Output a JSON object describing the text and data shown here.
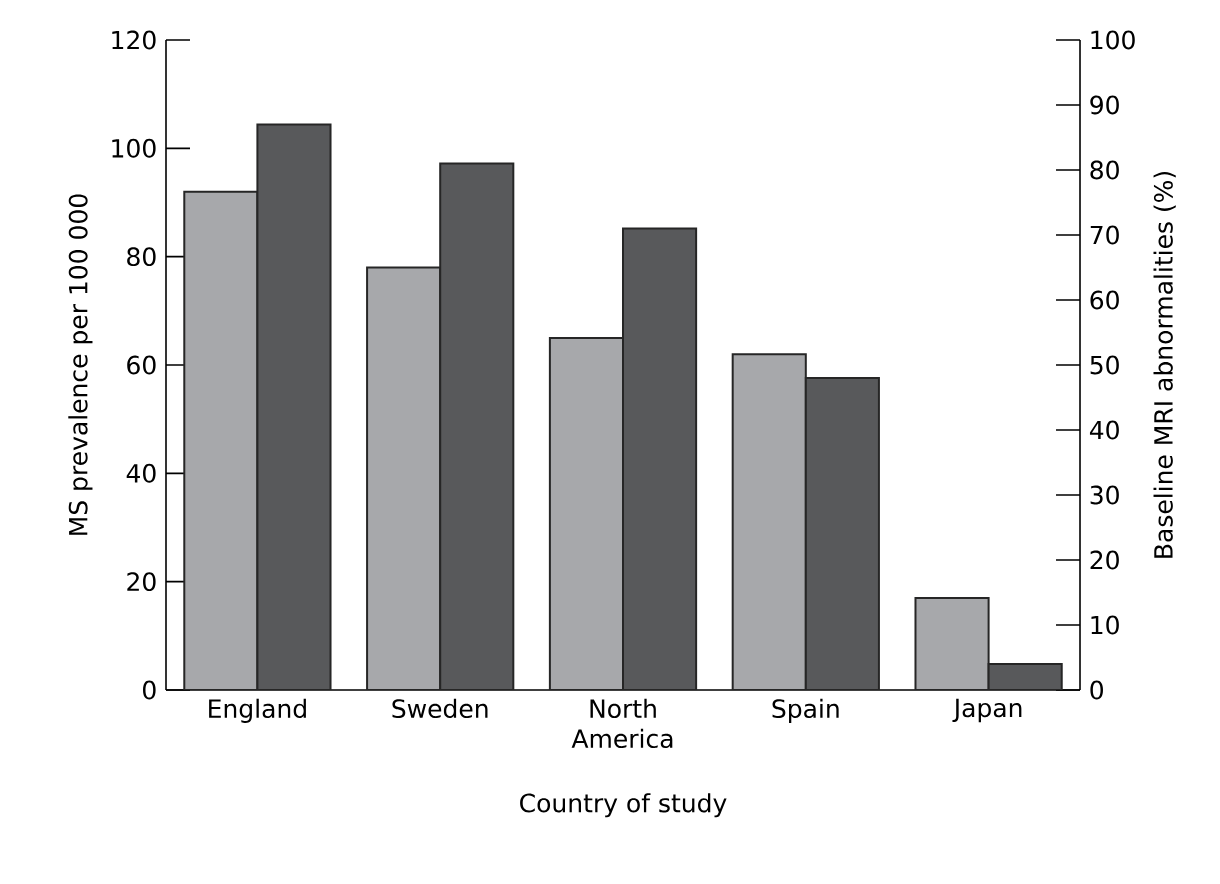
{
  "chart_data": {
    "type": "bar",
    "xlabel": "Country of study",
    "ylabel": "MS prevalence per 100 000",
    "y2label": "Baseline MRI abnormalities (%)",
    "categories": [
      "England",
      "Sweden",
      "North America",
      "Spain",
      "Japan"
    ],
    "series": [
      {
        "color": "#a7a8ab",
        "values": [
          92,
          78,
          65,
          62,
          17
        ]
      },
      {
        "color": "#58595b",
        "axis": "y2",
        "values": [
          87,
          81,
          71,
          48,
          4
        ]
      }
    ],
    "ylim": [
      0,
      120
    ],
    "yticks": [
      0,
      20,
      40,
      60,
      80,
      100,
      120
    ],
    "y2lim": [
      0,
      100
    ],
    "y2ticks": [
      0,
      10,
      20,
      30,
      40,
      50,
      60,
      70,
      80,
      90,
      100
    ]
  }
}
